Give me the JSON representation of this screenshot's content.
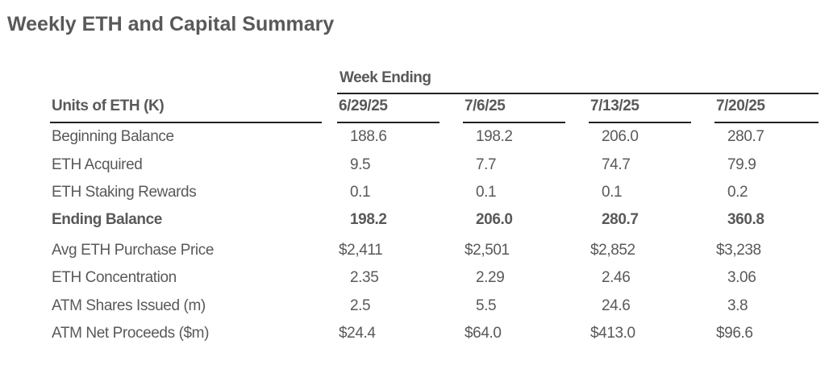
{
  "title": "Weekly ETH and Capital Summary",
  "table": {
    "group_header": "Week Ending",
    "row_header": "Units of ETH (K)",
    "columns": [
      "6/29/25",
      "7/6/25",
      "7/13/25",
      "7/20/25"
    ],
    "rows": [
      {
        "label": "Beginning Balance",
        "bold": false,
        "values": [
          "188.6",
          "198.2",
          "206.0",
          "280.7"
        ]
      },
      {
        "label": "ETH Acquired",
        "bold": false,
        "values": [
          "9.5",
          "7.7",
          "74.7",
          "79.9"
        ]
      },
      {
        "label": "ETH Staking Rewards",
        "bold": false,
        "values": [
          "0.1",
          "0.1",
          "0.1",
          "0.2"
        ]
      },
      {
        "label": "Ending Balance",
        "bold": true,
        "values": [
          "198.2",
          "206.0",
          "280.7",
          "360.8"
        ]
      },
      {
        "label": "Avg ETH Purchase Price",
        "bold": false,
        "values": [
          "$2,411",
          "$2,501",
          "$2,852",
          "$3,238"
        ]
      },
      {
        "label": "ETH Concentration",
        "bold": false,
        "values": [
          "2.35",
          "2.29",
          "2.46",
          "3.06"
        ]
      },
      {
        "label": "ATM Shares Issued (m)",
        "bold": false,
        "values": [
          "2.5",
          "5.5",
          "24.6",
          "3.8"
        ]
      },
      {
        "label": "ATM Net Proceeds ($m)",
        "bold": false,
        "values": [
          "$24.4",
          "$64.0",
          "$413.0",
          "$96.6"
        ]
      }
    ]
  }
}
